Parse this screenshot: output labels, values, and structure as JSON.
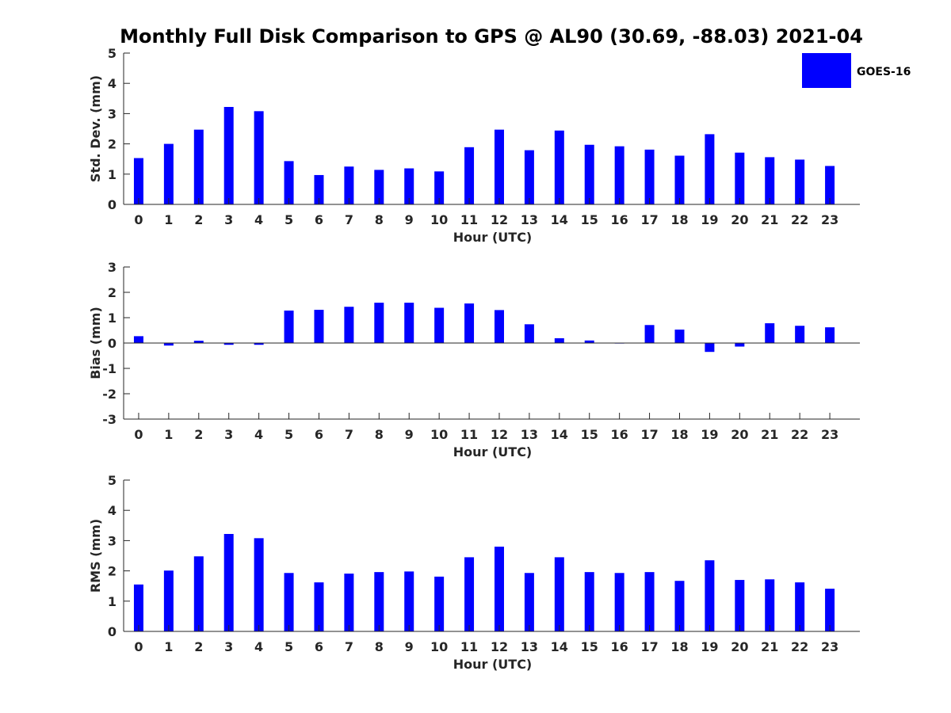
{
  "chart_data": {
    "title": "Monthly Full Disk Comparison to GPS @ AL90 (30.69, -88.03) 2021-04",
    "legend": {
      "label": "GOES-16",
      "placement": "top-right",
      "color": "#0000ff"
    },
    "bar_color": "#0000ff",
    "panels": [
      {
        "type": "bar",
        "id": "std-dev",
        "xlabel": "Hour (UTC)",
        "ylabel": "Std. Dev. (mm)",
        "ylim": [
          0,
          5
        ],
        "yticks": [
          0,
          1,
          2,
          3,
          4,
          5
        ],
        "categories": [
          "0",
          "1",
          "2",
          "3",
          "4",
          "5",
          "6",
          "7",
          "8",
          "9",
          "10",
          "11",
          "12",
          "13",
          "14",
          "15",
          "16",
          "17",
          "18",
          "19",
          "20",
          "21",
          "22",
          "23"
        ],
        "values": [
          1.53,
          2.0,
          2.47,
          3.22,
          3.08,
          1.43,
          0.97,
          1.25,
          1.14,
          1.19,
          1.09,
          1.89,
          2.47,
          1.79,
          2.44,
          1.97,
          1.92,
          1.81,
          1.61,
          2.32,
          1.71,
          1.56,
          1.48,
          1.27
        ],
        "grid": false
      },
      {
        "type": "bar",
        "id": "bias",
        "xlabel": "Hour (UTC)",
        "ylabel": "Bias (mm)",
        "ylim": [
          -3,
          3
        ],
        "yticks": [
          -3,
          -2,
          -1,
          0,
          1,
          2,
          3
        ],
        "categories": [
          "0",
          "1",
          "2",
          "3",
          "4",
          "5",
          "6",
          "7",
          "8",
          "9",
          "10",
          "11",
          "12",
          "13",
          "14",
          "15",
          "16",
          "17",
          "18",
          "19",
          "20",
          "21",
          "22",
          "23"
        ],
        "values": [
          0.27,
          -0.1,
          0.09,
          -0.07,
          -0.07,
          1.28,
          1.31,
          1.43,
          1.59,
          1.59,
          1.39,
          1.56,
          1.3,
          0.74,
          0.19,
          0.1,
          -0.02,
          0.71,
          0.53,
          -0.35,
          -0.14,
          0.78,
          0.68,
          0.62
        ],
        "grid": false
      },
      {
        "type": "bar",
        "id": "rms",
        "xlabel": "Hour (UTC)",
        "ylabel": "RMS (mm)",
        "ylim": [
          0,
          5
        ],
        "yticks": [
          0,
          1,
          2,
          3,
          4,
          5
        ],
        "categories": [
          "0",
          "1",
          "2",
          "3",
          "4",
          "5",
          "6",
          "7",
          "8",
          "9",
          "10",
          "11",
          "12",
          "13",
          "14",
          "15",
          "16",
          "17",
          "18",
          "19",
          "20",
          "21",
          "22",
          "23"
        ],
        "values": [
          1.55,
          2.01,
          2.48,
          3.22,
          3.08,
          1.93,
          1.62,
          1.91,
          1.96,
          1.98,
          1.81,
          2.45,
          2.8,
          1.93,
          2.45,
          1.96,
          1.93,
          1.96,
          1.67,
          2.35,
          1.7,
          1.72,
          1.62,
          1.41
        ],
        "grid": false
      }
    ]
  }
}
